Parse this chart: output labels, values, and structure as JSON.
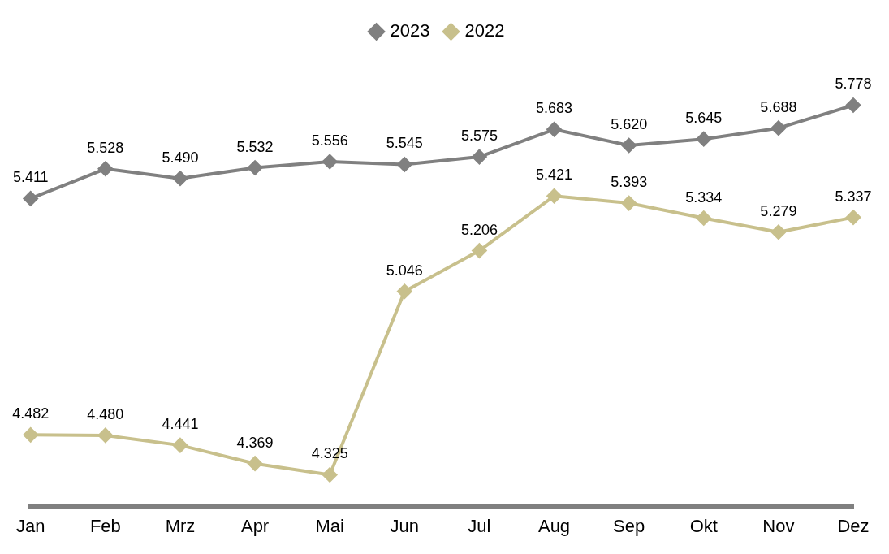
{
  "chart_data": {
    "type": "line",
    "categories": [
      "Jan",
      "Feb",
      "Mrz",
      "Apr",
      "Mai",
      "Jun",
      "Jul",
      "Aug",
      "Sep",
      "Okt",
      "Nov",
      "Dez"
    ],
    "series": [
      {
        "name": "2023",
        "color": "#808080",
        "values": [
          5411,
          5528,
          5490,
          5532,
          5556,
          5545,
          5575,
          5683,
          5620,
          5645,
          5688,
          5778
        ],
        "value_labels": [
          "5.411",
          "5.528",
          "5.490",
          "5.532",
          "5.556",
          "5.545",
          "5.575",
          "5.683",
          "5.620",
          "5.645",
          "5.688",
          "5.778"
        ]
      },
      {
        "name": "2022",
        "color": "#c8c08c",
        "values": [
          4482,
          4480,
          4441,
          4369,
          4325,
          5046,
          5206,
          5421,
          5393,
          5334,
          5279,
          5337
        ],
        "value_labels": [
          "4.482",
          "4.480",
          "4.441",
          "4.369",
          "4.325",
          "5.046",
          "5.206",
          "5.421",
          "5.393",
          "5.334",
          "5.279",
          "5.337"
        ]
      }
    ],
    "legend": "top",
    "marker": "diamond",
    "line_style": "solid"
  }
}
